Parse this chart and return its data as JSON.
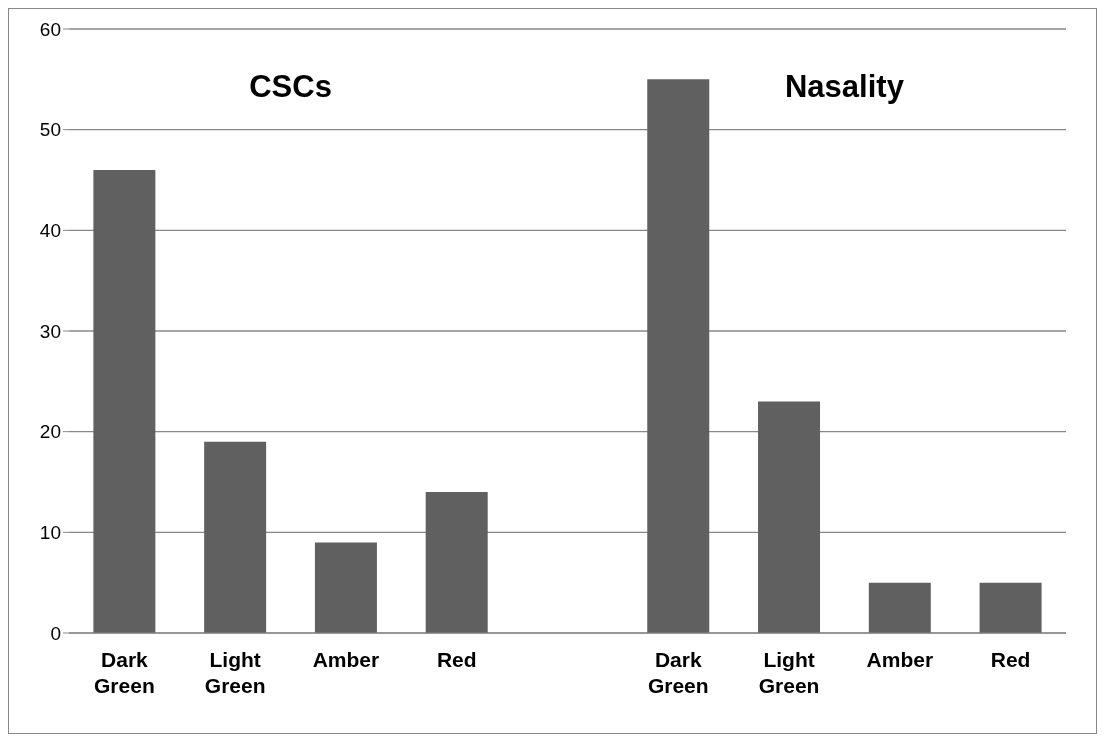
{
  "chart_data": {
    "type": "bar",
    "categories": [
      "Dark Green",
      "Light Green",
      "Amber",
      "Red",
      null,
      "Dark Green",
      "Light Green",
      "Amber",
      "Red"
    ],
    "values": [
      46,
      19,
      9,
      14,
      null,
      55,
      23,
      5,
      5
    ],
    "color": "#606060",
    "ylim": [
      0,
      60
    ],
    "yticks": [
      0,
      10,
      20,
      30,
      40,
      50,
      60
    ],
    "grid": "y",
    "annotations": [
      "CSCs",
      "Nasality"
    ]
  }
}
